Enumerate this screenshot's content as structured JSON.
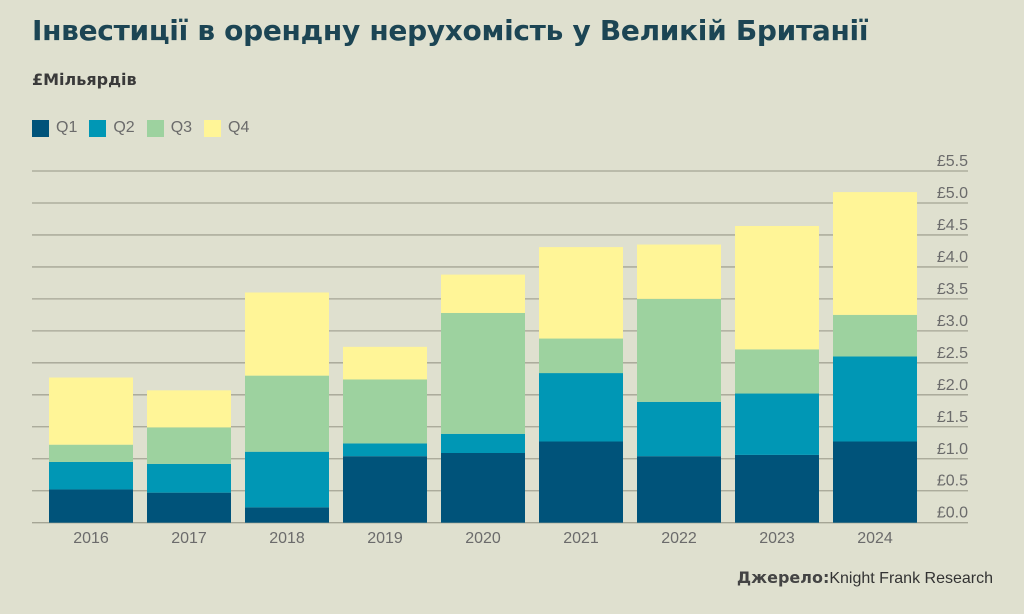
{
  "chart_data": {
    "type": "bar",
    "stacked": true,
    "title": "Інвестиції в орендну нерухомість у Великій Британії",
    "ylabel": "£Мільярдів",
    "categories": [
      "2016",
      "2017",
      "2018",
      "2019",
      "2020",
      "2021",
      "2022",
      "2023",
      "2024"
    ],
    "series": [
      {
        "name": "Q1",
        "color": "#00537a",
        "values": [
          0.52,
          0.47,
          0.24,
          1.04,
          1.09,
          1.27,
          1.04,
          1.06,
          1.27
        ]
      },
      {
        "name": "Q2",
        "color": "#0097b5",
        "values": [
          0.43,
          0.45,
          0.87,
          0.2,
          0.3,
          1.07,
          0.85,
          0.96,
          1.33
        ]
      },
      {
        "name": "Q3",
        "color": "#9dd29f",
        "values": [
          0.27,
          0.57,
          1.19,
          1.0,
          1.89,
          0.54,
          1.61,
          0.69,
          0.65
        ]
      },
      {
        "name": "Q4",
        "color": "#fff597",
        "values": [
          1.05,
          0.58,
          1.3,
          0.51,
          0.6,
          1.43,
          0.85,
          1.93,
          1.92
        ]
      }
    ],
    "ylim": [
      0,
      5.5
    ],
    "yticks": [
      "£0.0",
      "£0.5",
      "£1.0",
      "£1.5",
      "£2.0",
      "£2.5",
      "£3.0",
      "£3.5",
      "£4.0",
      "£4.5",
      "£5.0",
      "£5.5"
    ],
    "y_axis_side": "right",
    "grid": true,
    "legend_position": "top-left"
  },
  "source": {
    "label": "Джерело:",
    "text": "Knight Frank Research"
  }
}
